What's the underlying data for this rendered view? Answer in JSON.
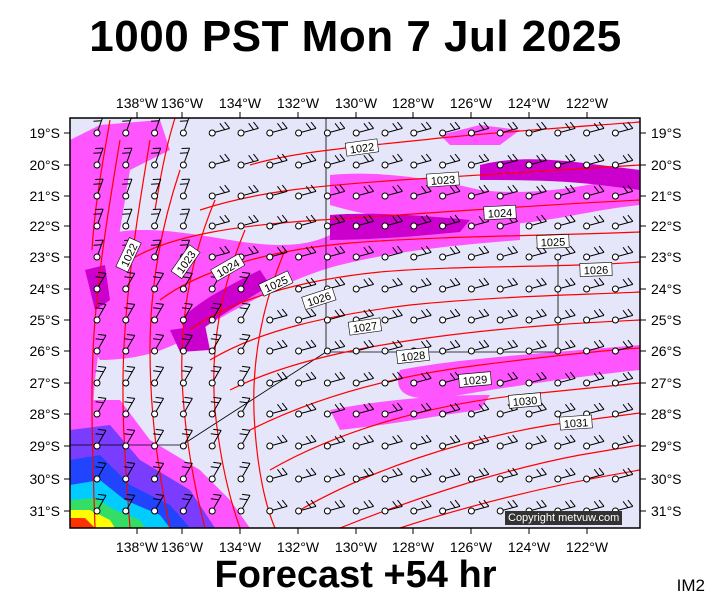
{
  "title": "1000 PST Mon 7 Jul 2025",
  "footer": "Forecast +54 hr",
  "tag": "IM2",
  "copyright": "Copyright metvuw.com",
  "lon_labels": [
    "138°W",
    "136°W",
    "134°W",
    "132°W",
    "130°W",
    "128°W",
    "126°W",
    "124°W",
    "122°W"
  ],
  "lat_labels": [
    "19°S",
    "20°S",
    "21°S",
    "22°S",
    "23°S",
    "24°S",
    "25°S",
    "26°S",
    "27°S",
    "28°S",
    "29°S",
    "30°S",
    "31°S"
  ],
  "isobars": [
    "1022",
    "1023",
    "1024",
    "1025",
    "1026",
    "1027",
    "1028",
    "1029",
    "1030",
    "1031",
    "1022",
    "1023",
    "1024",
    "1025",
    "1026"
  ],
  "colors": {
    "rain_light": "#ff55ff",
    "rain_mod": "#cc00cc",
    "rain_heavy": "#2244ff",
    "rain_very_heavy": "#00ccff",
    "rain_extreme": "#ffff00",
    "isobar": "#ff0000",
    "background": "#e6e6fa"
  }
}
